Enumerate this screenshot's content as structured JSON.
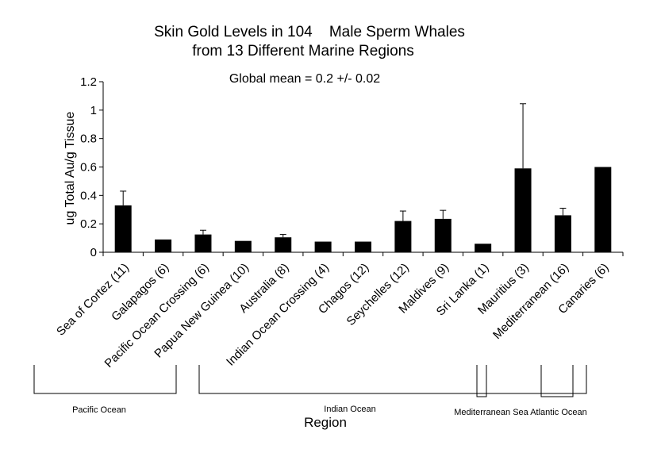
{
  "chart_data": {
    "type": "bar",
    "title_line1": "Skin Gold Levels in 104    Male Sperm Whales",
    "title_line2": "from 13 Different Marine Regions",
    "subtitle": "Global mean = 0.2 +/- 0.02",
    "ylabel": "ug Total Au/g Tissue",
    "xlabel": "Region",
    "ylim": [
      0,
      1.2
    ],
    "yticks": [
      "0",
      "0.2",
      "0.4",
      "0.6",
      "0.8",
      "1",
      "1.2"
    ],
    "categories": [
      "Sea of Cortez (11)",
      "Galapagos (6)",
      "Pacific Ocean Crossing (6)",
      "Papua New Guinea (10)",
      "Australia (8)",
      "Indian Ocean Crossing (4)",
      "Chagos (12)",
      "Seychelles (12)",
      "Maldives (9)",
      "Sri Lanka (1)",
      "Mauritius (3)",
      "Mediterranean (16)",
      "Canaries (6)"
    ],
    "values": [
      0.33,
      0.09,
      0.125,
      0.08,
      0.105,
      0.075,
      0.075,
      0.22,
      0.235,
      0.06,
      0.59,
      0.26,
      0.6
    ],
    "errors": [
      0.1,
      0,
      0.03,
      0,
      0.02,
      0,
      0,
      0.07,
      0.06,
      0,
      0.455,
      0.05,
      0
    ],
    "bar_color": "#000000",
    "grid": false,
    "groups": [
      {
        "label": "Pacific Ocean",
        "from": 0,
        "to": 2
      },
      {
        "label": "Indian Ocean",
        "from": 3,
        "to": 9
      },
      {
        "label": "Mediterranean Sea",
        "from": 11,
        "to": 11
      },
      {
        "label": "Atlantic Ocean",
        "from": 12,
        "to": 12
      }
    ]
  }
}
